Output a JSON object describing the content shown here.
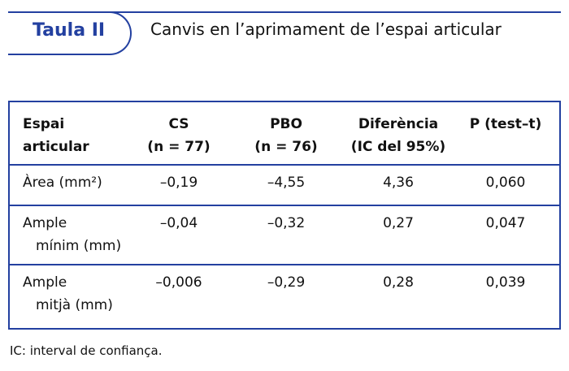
{
  "header": {
    "label": "Taula II",
    "title": "Canvis en l’aprimament de l’espai articular"
  },
  "table": {
    "columns": [
      [
        "Espai",
        "articular"
      ],
      [
        "CS",
        "(n = 77)"
      ],
      [
        "PBO",
        "(n = 76)"
      ],
      [
        "Diferència",
        "(IC del 95%)"
      ],
      [
        "P (test–t)"
      ]
    ],
    "rows": [
      [
        [
          "Àrea (mm²)"
        ],
        "–0,19",
        "–4,55",
        "4,36",
        "0,060"
      ],
      [
        [
          "Ample",
          "mínim (mm)"
        ],
        "–0,04",
        "–0,32",
        "0,27",
        "0,047"
      ],
      [
        [
          "Ample",
          "mitjà (mm)"
        ],
        "–0,006",
        "–0,29",
        "0,28",
        "0,039"
      ]
    ]
  },
  "footnote": "IC: interval de confiança."
}
